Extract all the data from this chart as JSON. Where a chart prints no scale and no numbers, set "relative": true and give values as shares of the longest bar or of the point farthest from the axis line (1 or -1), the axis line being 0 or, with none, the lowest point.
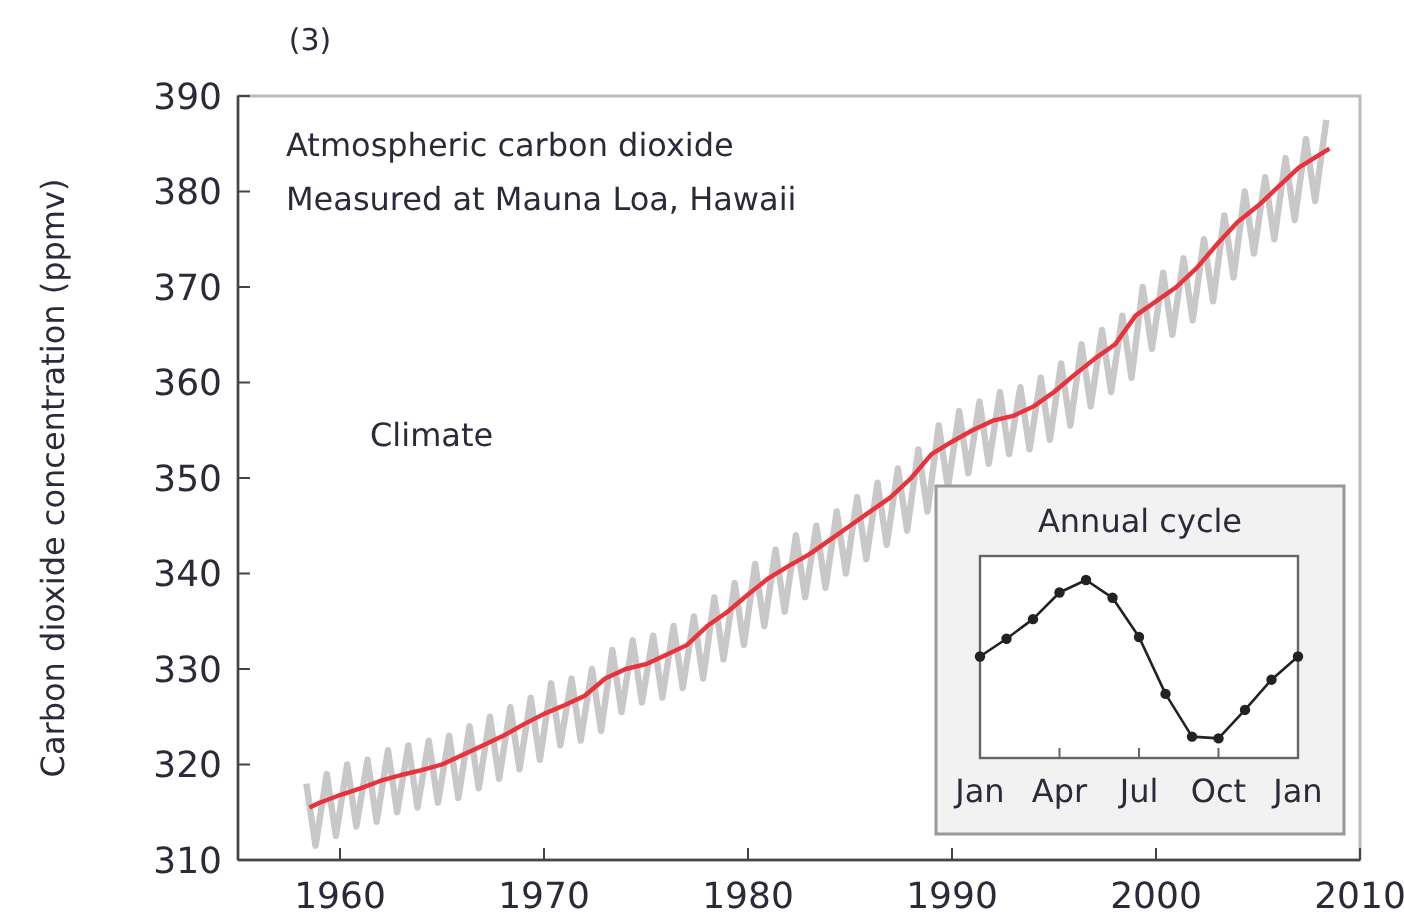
{
  "chart_data": [
    {
      "type": "line",
      "title": "(3)",
      "ylabel": "Carbon dioxide concentration (ppmv)",
      "annotations": [
        "Atmospheric carbon dioxide",
        "Measured at Mauna Loa, Hawaii",
        "Climate"
      ],
      "xlim": [
        1955,
        2010
      ],
      "xticks": [
        1960,
        1970,
        1980,
        1990,
        2000,
        2010
      ],
      "ylim": [
        310,
        390
      ],
      "yticks": [
        310,
        320,
        330,
        340,
        350,
        360,
        370,
        380,
        390
      ],
      "grid": false,
      "series": [
        {
          "color": "#c8c8c8",
          "x": [
            1958.35,
            1958.8,
            1959.35,
            1959.8,
            1960.35,
            1960.8,
            1961.35,
            1961.8,
            1962.35,
            1962.8,
            1963.35,
            1963.8,
            1964.35,
            1964.8,
            1965.35,
            1965.8,
            1966.35,
            1966.8,
            1967.35,
            1967.8,
            1968.35,
            1968.8,
            1969.35,
            1969.8,
            1970.35,
            1970.8,
            1971.35,
            1971.8,
            1972.35,
            1972.8,
            1973.35,
            1973.8,
            1974.35,
            1974.8,
            1975.35,
            1975.8,
            1976.35,
            1976.8,
            1977.35,
            1977.8,
            1978.35,
            1978.8,
            1979.35,
            1979.8,
            1980.35,
            1980.8,
            1981.35,
            1981.8,
            1982.35,
            1982.8,
            1983.35,
            1983.8,
            1984.35,
            1984.8,
            1985.35,
            1985.8,
            1986.35,
            1986.8,
            1987.35,
            1987.8,
            1988.35,
            1988.8,
            1989.35,
            1989.8,
            1990.35,
            1990.8,
            1991.35,
            1991.8,
            1992.35,
            1992.8,
            1993.35,
            1993.8,
            1994.35,
            1994.8,
            1995.35,
            1995.8,
            1996.35,
            1996.8,
            1997.35,
            1997.8,
            1998.35,
            1998.8,
            1999.35,
            1999.8,
            2000.35,
            2000.8,
            2001.35,
            2001.8,
            2002.35,
            2002.8,
            2003.35,
            2003.8,
            2004.35,
            2004.8,
            2005.35,
            2005.8,
            2006.35,
            2006.8,
            2007.35,
            2007.8,
            2008.35
          ],
          "values": [
            318,
            311.5,
            319,
            312.5,
            320,
            313.5,
            320.5,
            314,
            321.5,
            315,
            322,
            315.5,
            322.5,
            316,
            323,
            316.5,
            324,
            317.5,
            325,
            318.5,
            326,
            319.5,
            327,
            320.5,
            328.5,
            322,
            329,
            322.5,
            330,
            323.5,
            332,
            325.5,
            333,
            326.5,
            333.5,
            327,
            334.5,
            328,
            335.5,
            329,
            337.5,
            331,
            339,
            332.5,
            341,
            334.5,
            342.5,
            336,
            344,
            337.5,
            345,
            338.5,
            346.5,
            340,
            348,
            341.5,
            349.5,
            343,
            351,
            344.5,
            353,
            346.5,
            355.5,
            349,
            357,
            350.5,
            358,
            351.5,
            359,
            352.5,
            359.5,
            353,
            360.5,
            354,
            362,
            355.5,
            364,
            357.5,
            365.5,
            359,
            367,
            360.5,
            370,
            363.5,
            371.5,
            365,
            373,
            366.5,
            375,
            368.5,
            377.5,
            371,
            380,
            373.5,
            381.5,
            375,
            383.5,
            377,
            385.5,
            379,
            387.5
          ]
        },
        {
          "color": "#e8323c",
          "x": [
            1958.5,
            1959,
            1960,
            1961,
            1962,
            1963,
            1964,
            1965,
            1966,
            1967,
            1968,
            1969,
            1970,
            1971,
            1972,
            1973,
            1974,
            1975,
            1976,
            1977,
            1978,
            1979,
            1980,
            1981,
            1982,
            1983,
            1984,
            1985,
            1986,
            1987,
            1988,
            1989,
            1990,
            1991,
            1992,
            1993,
            1994,
            1995,
            1996,
            1997,
            1998,
            1999,
            2000,
            2001,
            2002,
            2003,
            2004,
            2005,
            2006,
            2007,
            2008.5
          ],
          "values": [
            315.5,
            316,
            316.8,
            317.5,
            318.3,
            318.9,
            319.4,
            320,
            321,
            322,
            323,
            324.2,
            325.3,
            326.2,
            327.2,
            329,
            330,
            330.5,
            331.5,
            332.5,
            334.5,
            336,
            337.8,
            339.5,
            340.8,
            342,
            343.5,
            345,
            346.5,
            348,
            350,
            352.5,
            353.8,
            355,
            356,
            356.5,
            357.5,
            359,
            360.8,
            362.5,
            364,
            367,
            368.5,
            370,
            372,
            374.5,
            376.8,
            378.5,
            380.5,
            382.5,
            384.5
          ]
        }
      ]
    },
    {
      "type": "line",
      "title": "Annual cycle",
      "relative": true,
      "marker": "circle",
      "categories": [
        "Jan",
        null,
        null,
        "Apr",
        null,
        null,
        "Jul",
        null,
        null,
        "Oct",
        null,
        null,
        "Jan"
      ],
      "series": [
        {
          "color": "#222222",
          "values": [
            0.57,
            0.67,
            0.78,
            0.93,
            1,
            0.9,
            0.68,
            0.36,
            0.12,
            0.11,
            0.27,
            0.44,
            0.57
          ]
        }
      ]
    }
  ]
}
